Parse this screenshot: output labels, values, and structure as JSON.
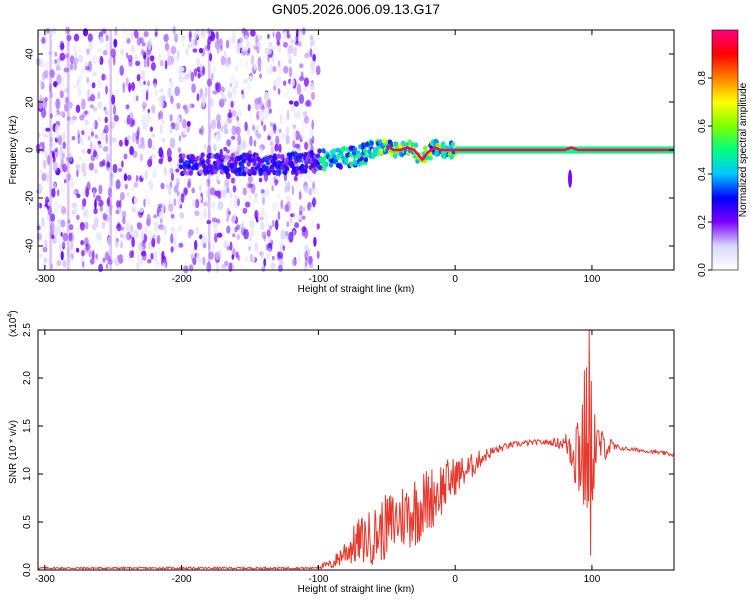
{
  "chart_data": [
    {
      "type": "heatmap",
      "title": "GN05.2026.006.09.13.G17",
      "xlabel": "Height of straight line (km)",
      "ylabel": "Frequency (Hz)",
      "xlim": [
        -305,
        160
      ],
      "ylim": [
        -50,
        50
      ],
      "xticks": [
        -300,
        -200,
        -100,
        0,
        100
      ],
      "yticks": [
        -40,
        -20,
        0,
        20,
        40
      ],
      "colorbar": {
        "label": "Normalized spectral amplitude",
        "range": [
          0.0,
          1.0
        ],
        "ticks": [
          "0.0",
          "0.2",
          "0.4",
          "0.6",
          "0.8"
        ],
        "tick_values": [
          0.0,
          0.2,
          0.4,
          0.6,
          0.8
        ],
        "colormap": [
          "#ffffff",
          "#d8d8ff",
          "#7f00ff",
          "#0000ff",
          "#00c8ff",
          "#00ff80",
          "#80ff00",
          "#ffff00",
          "#ff8000",
          "#ff0000",
          "#ff0080"
        ]
      },
      "ridge": {
        "description": "frequency of maximum spectral amplitude vs height",
        "x": [
          -195,
          -160,
          -130,
          -110,
          -95,
          -80,
          -70,
          -60,
          -55,
          -50,
          -45,
          -40,
          -35,
          -30,
          -27,
          -24,
          -20,
          -15,
          -10,
          -5,
          0,
          50,
          80,
          85,
          90,
          100,
          160
        ],
        "y": [
          -6,
          -6,
          -6,
          -5,
          -4,
          -3,
          -2,
          0,
          1,
          2,
          0,
          0,
          1,
          0,
          -2,
          -4,
          -1,
          1,
          0,
          0,
          0,
          0,
          0,
          1,
          0,
          0,
          0
        ]
      },
      "noise_region_km": [
        -305,
        -100
      ]
    },
    {
      "type": "line",
      "title": "",
      "xlabel": "Height of straight line (km)",
      "ylabel": "SNR (10 * v/v)",
      "y_multiplier": "(x10^4)",
      "y_multiplier_base": "(x10",
      "y_multiplier_exp": "4",
      "y_multiplier_close": ")",
      "xlim": [
        -305,
        160
      ],
      "ylim": [
        0.0,
        2.5
      ],
      "xticks": [
        -300,
        -200,
        -100,
        0,
        100
      ],
      "yticks": [
        "0.0",
        "0.5",
        "1.0",
        "1.5",
        "2.0",
        "2.5"
      ],
      "ytick_values": [
        0.0,
        0.5,
        1.0,
        1.5,
        2.0,
        2.5
      ],
      "series": [
        {
          "name": "SNR",
          "color": "#e8382e",
          "envelope_x": [
            -305,
            -250,
            -200,
            -150,
            -105,
            -90,
            -80,
            -70,
            -60,
            -50,
            -40,
            -30,
            -20,
            -10,
            0,
            10,
            20,
            30,
            40,
            50,
            60,
            70,
            80,
            85,
            90,
            95,
            100,
            105,
            120,
            140,
            160
          ],
          "envelope_y": [
            0.02,
            0.02,
            0.02,
            0.02,
            0.02,
            0.06,
            0.2,
            0.3,
            0.35,
            0.45,
            0.55,
            0.62,
            0.72,
            0.85,
            0.98,
            1.05,
            1.18,
            1.25,
            1.3,
            1.32,
            1.33,
            1.33,
            1.32,
            1.3,
            1.28,
            1.3,
            1.31,
            1.3,
            1.27,
            1.24,
            1.2
          ],
          "noise_amplitude_y": [
            0.01,
            0.01,
            0.01,
            0.01,
            0.01,
            0.05,
            0.15,
            0.25,
            0.3,
            0.35,
            0.35,
            0.4,
            0.35,
            0.3,
            0.2,
            0.15,
            0.08,
            0.05,
            0.03,
            0.03,
            0.03,
            0.03,
            0.08,
            0.3,
            0.6,
            0.9,
            0.7,
            0.2,
            0.02,
            0.02,
            0.02
          ],
          "peak": {
            "x": 98,
            "y": 2.5
          },
          "dip": {
            "x": 99,
            "y": 0.15
          }
        }
      ]
    }
  ]
}
